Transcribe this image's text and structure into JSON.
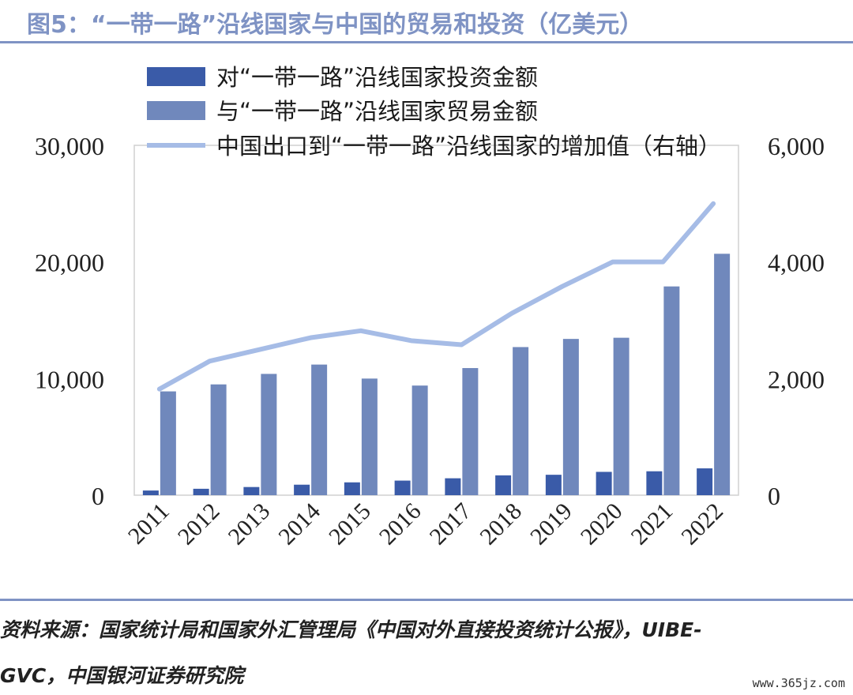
{
  "title": "图5：“一带一路”沿线国家与中国的贸易和投资（亿美元）",
  "chart_data": {
    "type": "bar",
    "categories": [
      "2011",
      "2012",
      "2013",
      "2014",
      "2015",
      "2016",
      "2017",
      "2018",
      "2019",
      "2020",
      "2021",
      "2022"
    ],
    "series": [
      {
        "name": "对“一带一路”沿线国家投资金额",
        "kind": "bar",
        "axis": "left",
        "color": "#3a5ba8",
        "values": [
          400,
          550,
          700,
          900,
          1100,
          1250,
          1450,
          1700,
          1750,
          2000,
          2050,
          2300
        ]
      },
      {
        "name": "与“一带一路”沿线国家贸易金额",
        "kind": "bar",
        "axis": "left",
        "color": "#7088bc",
        "values": [
          8900,
          9500,
          10400,
          11200,
          10000,
          9400,
          10900,
          12700,
          13400,
          13500,
          17900,
          20700
        ]
      },
      {
        "name": "中国出口到“一带一路”沿线国家的增加值（右轴）",
        "kind": "line",
        "axis": "right",
        "color": "#a6bce6",
        "values": [
          1820,
          2300,
          2500,
          2700,
          2820,
          2650,
          2580,
          3120,
          3580,
          4000,
          4000,
          5000
        ]
      }
    ],
    "y_left": {
      "min": 0,
      "max": 30000,
      "ticks": [
        "0",
        "10,000",
        "20,000",
        "30,000"
      ]
    },
    "y_right": {
      "min": 0,
      "max": 6000,
      "ticks": [
        "0",
        "2,000",
        "4,000",
        "6,000"
      ]
    },
    "legend_position": "top-center",
    "grid": false
  },
  "source_line1": "资料来源：国家统计局和国家外汇管理局《中国对外直接投资统计公报》，UIBE-",
  "source_line2": "GVC，中国银河证券研究院",
  "watermark": "www.365jz.com"
}
